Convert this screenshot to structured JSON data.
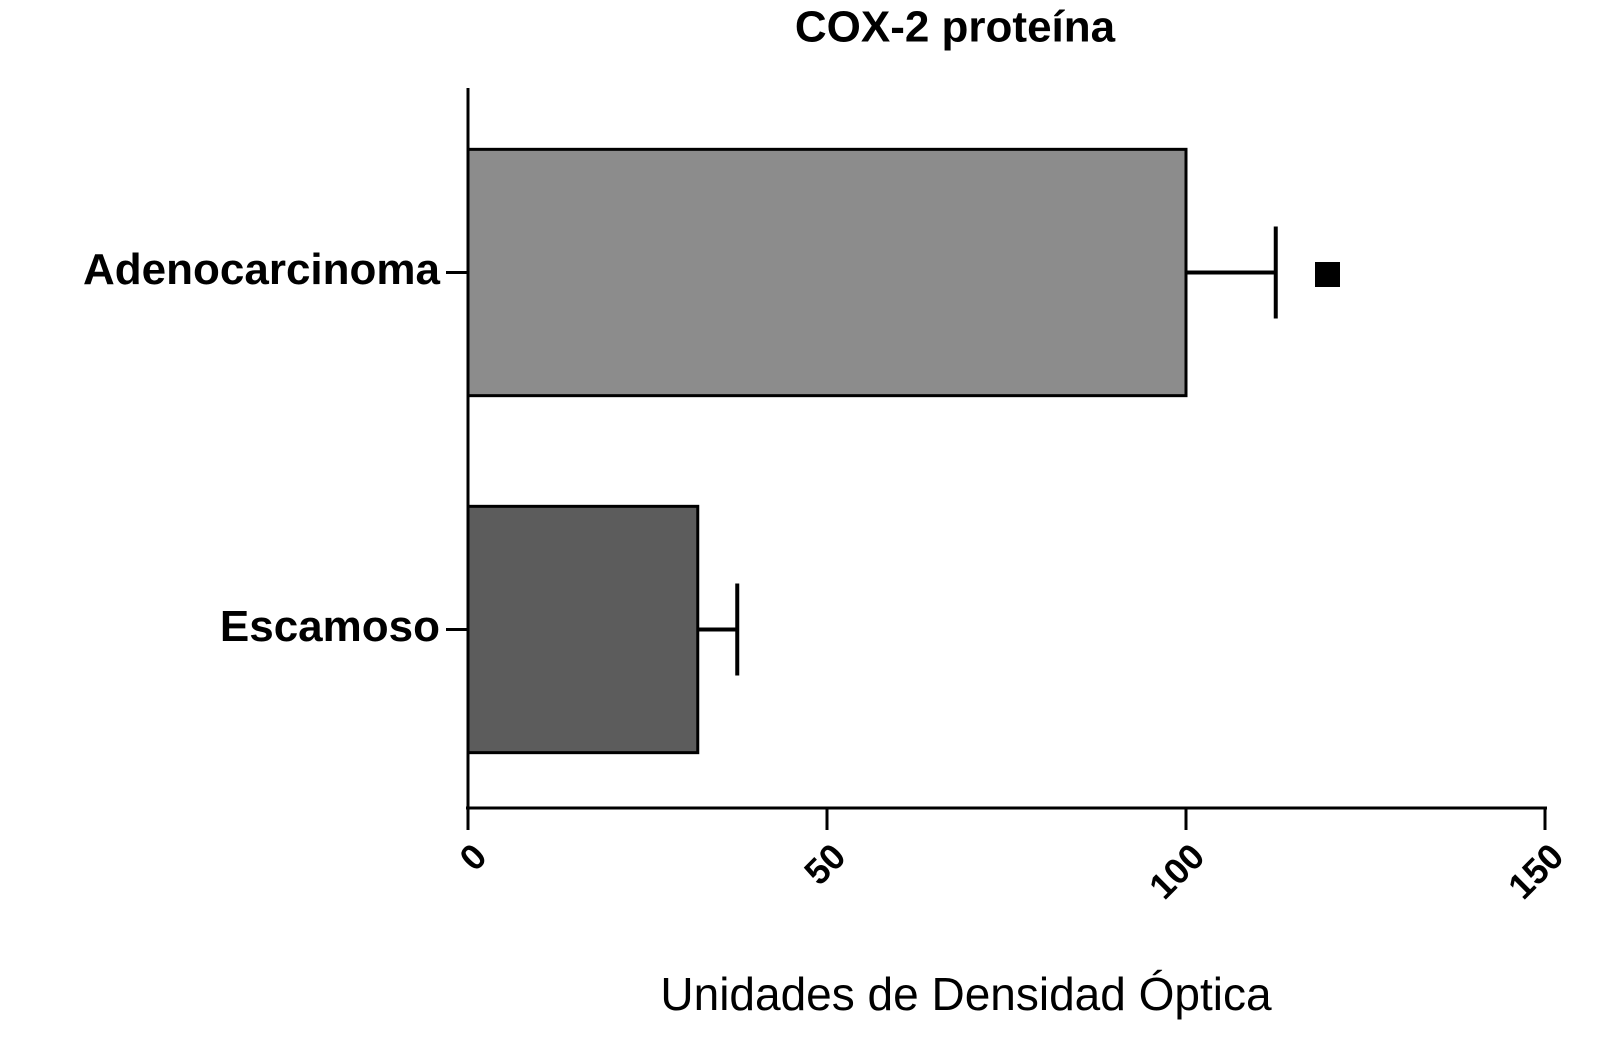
{
  "chart_data": {
    "type": "bar",
    "orientation": "horizontal",
    "title": "COX-2 proteína",
    "xlabel": "Unidades de Densidad Óptica",
    "categories": [
      "Adenocarcinoma",
      "Escamoso"
    ],
    "values": [
      100,
      32
    ],
    "errors": [
      12.5,
      5.5
    ],
    "colors": [
      "#8c8c8c",
      "#5c5c5c"
    ],
    "xlim": [
      0,
      150
    ],
    "xticks": [
      0,
      50,
      100,
      150
    ],
    "grid": false
  }
}
